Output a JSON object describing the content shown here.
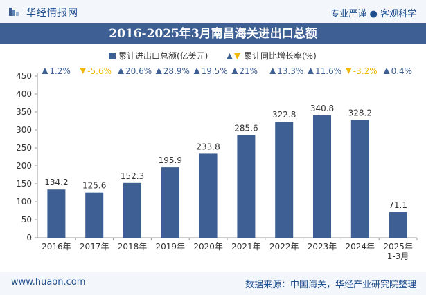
{
  "header": {
    "brand": "华经情报网",
    "tagline": "专业严谨 ● 客观科学"
  },
  "footer": {
    "site": "www.huaon.com",
    "source": "数据来源：中国海关，华经产业研究院整理"
  },
  "chart_data": {
    "type": "bar",
    "title": "2016-2025年3月南昌海关进出口总额",
    "categories": [
      "2016年",
      "2017年",
      "2018年",
      "2019年",
      "2020年",
      "2021年",
      "2022年",
      "2023年",
      "2024年",
      "2025年\n1-3月"
    ],
    "series": [
      {
        "name": "累计进出口总额(亿美元)",
        "type": "bar",
        "values": [
          134.2,
          125.6,
          152.3,
          195.9,
          233.8,
          285.6,
          322.8,
          340.8,
          328.2,
          71.1
        ]
      },
      {
        "name": "累计同比增长率(%)",
        "type": "indicator",
        "values": [
          1.2,
          -5.6,
          20.6,
          28.9,
          19.5,
          21,
          13.3,
          11.6,
          -3.2,
          0.4
        ]
      }
    ],
    "xlabel": "",
    "ylabel": "",
    "ylim": [
      0,
      450
    ],
    "yticks": [
      0,
      50,
      100,
      150,
      200,
      250,
      300,
      350,
      400,
      450
    ],
    "legend_position": "top-center",
    "grid": false,
    "colors": {
      "bar": "#3e5f93",
      "up": "#3e5f93",
      "down": "#f2b705"
    }
  }
}
